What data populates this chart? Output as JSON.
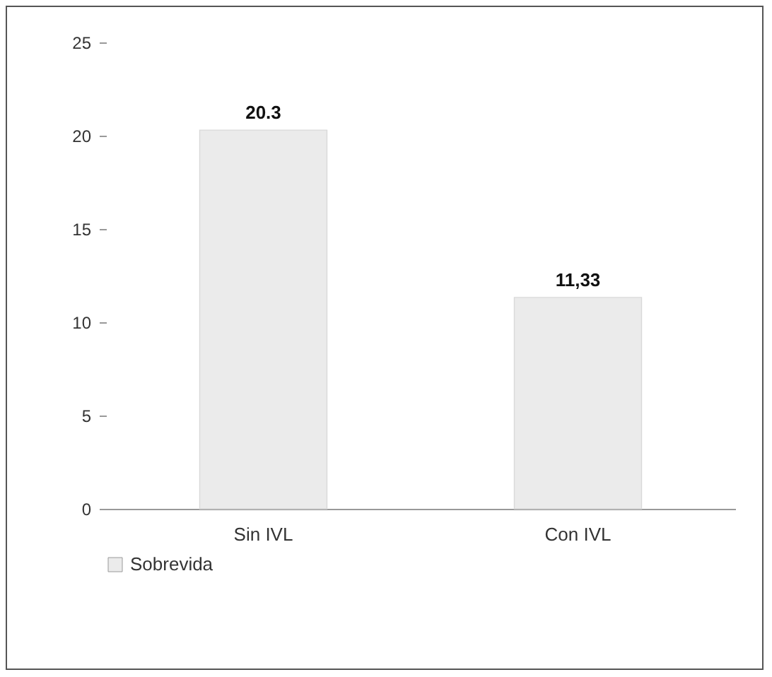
{
  "chart_data": {
    "type": "bar",
    "categories": [
      "Sin IVL",
      "Con IVL"
    ],
    "series": [
      {
        "name": "Sobrevida",
        "color": "#ebebeb",
        "values": [
          20.3,
          11.33
        ],
        "value_labels": [
          "20.3",
          "11,33"
        ]
      }
    ],
    "ylim": [
      0,
      25
    ],
    "yticks": [
      0,
      5,
      10,
      15,
      20,
      25
    ],
    "grid": false,
    "legend": "bottom"
  }
}
